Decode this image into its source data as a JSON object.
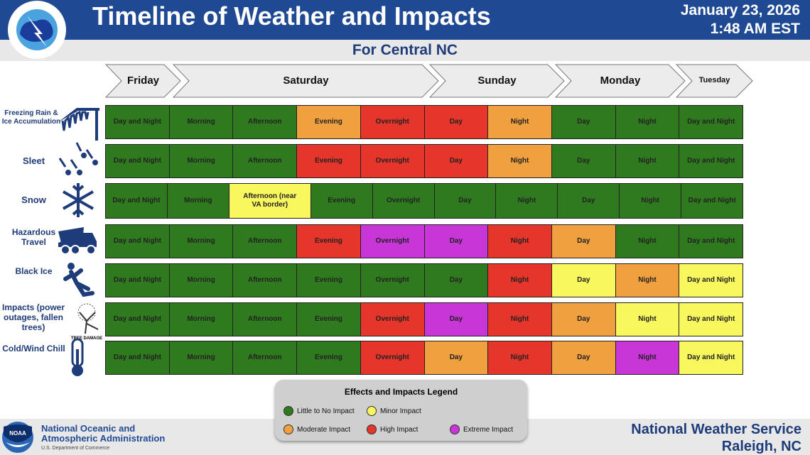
{
  "header": {
    "title": "Timeline of Weather and Impacts",
    "date": "January 23, 2026",
    "time": "1:48 AM EST",
    "subtitle": "For Central NC",
    "logo_text": "NATIONAL WEATHER SERVICE"
  },
  "days": [
    "Friday",
    "Saturday",
    "Sunday",
    "Monday",
    "Tuesday"
  ],
  "colors": {
    "G": "#2f7a1f",
    "Y": "#f9f75e",
    "O": "#f0a03f",
    "R": "#e6352a",
    "M": "#c936d8"
  },
  "rows": [
    {
      "label": "Freezing Rain & Ice Accumulation",
      "icon": "icicle-icon",
      "cells": [
        [
          "Day and Night",
          "G"
        ],
        [
          "Morning",
          "G"
        ],
        [
          "Afternoon",
          "G"
        ],
        [
          "Evening",
          "O"
        ],
        [
          "Overnight",
          "R"
        ],
        [
          "Day",
          "R"
        ],
        [
          "Night",
          "O"
        ],
        [
          "Day",
          "G"
        ],
        [
          "Night",
          "G"
        ],
        [
          "Day and Night",
          "G"
        ]
      ]
    },
    {
      "label": "Sleet",
      "icon": "sleet-icon",
      "cells": [
        [
          "Day and Night",
          "G"
        ],
        [
          "Morning",
          "G"
        ],
        [
          "Afternoon",
          "G"
        ],
        [
          "Evening",
          "R"
        ],
        [
          "Overnight",
          "R"
        ],
        [
          "Day",
          "R"
        ],
        [
          "Night",
          "O"
        ],
        [
          "Day",
          "G"
        ],
        [
          "Night",
          "G"
        ],
        [
          "Day and Night",
          "G"
        ]
      ]
    },
    {
      "label": "Snow",
      "icon": "snowflake-icon",
      "cells": [
        [
          "Day and Night",
          "G"
        ],
        [
          "Morning",
          "G"
        ],
        [
          "Afternoon (near VA border)",
          "Y"
        ],
        [
          "Evening",
          "G"
        ],
        [
          "Overnight",
          "G"
        ],
        [
          "Day",
          "G"
        ],
        [
          "Night",
          "G"
        ],
        [
          "Day",
          "G"
        ],
        [
          "Night",
          "G"
        ],
        [
          "Day and Night",
          "G"
        ]
      ]
    },
    {
      "label": "Hazardous Travel",
      "icon": "plow-truck-icon",
      "cells": [
        [
          "Day and Night",
          "G"
        ],
        [
          "Morning",
          "G"
        ],
        [
          "Afternoon",
          "G"
        ],
        [
          "Evening",
          "R"
        ],
        [
          "Overnight",
          "M"
        ],
        [
          "Day",
          "M"
        ],
        [
          "Night",
          "R"
        ],
        [
          "Day",
          "O"
        ],
        [
          "Night",
          "G"
        ],
        [
          "Day and Night",
          "G"
        ]
      ]
    },
    {
      "label": "Black Ice",
      "icon": "slipping-person-icon",
      "cells": [
        [
          "Day and Night",
          "G"
        ],
        [
          "Morning",
          "G"
        ],
        [
          "Afternoon",
          "G"
        ],
        [
          "Evening",
          "G"
        ],
        [
          "Overnight",
          "G"
        ],
        [
          "Day",
          "G"
        ],
        [
          "Night",
          "R"
        ],
        [
          "Day",
          "Y"
        ],
        [
          "Night",
          "O"
        ],
        [
          "Day and Night",
          "Y"
        ]
      ]
    },
    {
      "label": "Impacts (power outages, fallen trees)",
      "icon": "tree-damage-icon",
      "icon_text": "TREE DAMAGE",
      "cells": [
        [
          "Day and Night",
          "G"
        ],
        [
          "Morning",
          "G"
        ],
        [
          "Afternoon",
          "G"
        ],
        [
          "Evening",
          "G"
        ],
        [
          "Overnight",
          "R"
        ],
        [
          "Day",
          "M"
        ],
        [
          "Night",
          "R"
        ],
        [
          "Day",
          "O"
        ],
        [
          "Night",
          "Y"
        ],
        [
          "Day and Night",
          "Y"
        ]
      ]
    },
    {
      "label": "Cold/Wind Chill",
      "icon": "thermometer-icon",
      "cells": [
        [
          "Day and Night",
          "G"
        ],
        [
          "Morning",
          "G"
        ],
        [
          "Afternoon",
          "G"
        ],
        [
          "Evening",
          "G"
        ],
        [
          "Overnight",
          "R"
        ],
        [
          "Day",
          "O"
        ],
        [
          "Night",
          "R"
        ],
        [
          "Day",
          "O"
        ],
        [
          "Night",
          "M"
        ],
        [
          "Day and Night",
          "Y"
        ]
      ]
    }
  ],
  "legend": {
    "title": "Effects and Impacts Legend",
    "items": [
      {
        "label": "Little to No Impact",
        "level": "G"
      },
      {
        "label": "Minor Impact",
        "level": "Y"
      },
      {
        "label": "Moderate Impact",
        "level": "O"
      },
      {
        "label": "High Impact",
        "level": "R"
      },
      {
        "label": "Extreme Impact",
        "level": "M"
      }
    ]
  },
  "footer": {
    "noaa_logo": "NOAA",
    "noaa_name": "National Oceanic and Atmospheric Administration",
    "noaa_dept": "U.S. Department of Commerce",
    "office_line1": "National Weather Service",
    "office_line2": "Raleigh, NC"
  }
}
